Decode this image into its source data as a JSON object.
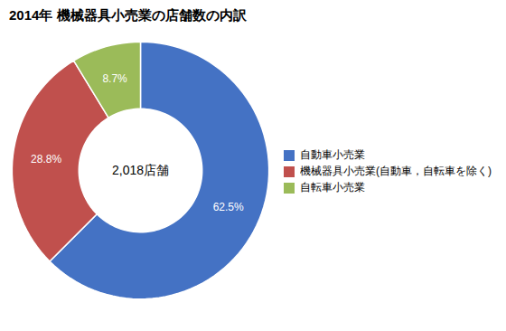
{
  "chart_data": {
    "type": "pie",
    "title": "2014年 機械器具小売業の店舗数の内訳",
    "annotations": [
      "2,018店舗"
    ],
    "categories": [
      "自動車小売業",
      "機械器具小売業(自動車，自転車を除く)",
      "自転車小売業"
    ],
    "values": [
      62.5,
      28.8,
      8.7
    ],
    "value_labels": [
      "62.5%",
      "28.8%",
      "8.7%"
    ],
    "colors": [
      "#4472C4",
      "#C0504D",
      "#9BBB59"
    ],
    "data_labels": true,
    "legend": "right"
  }
}
